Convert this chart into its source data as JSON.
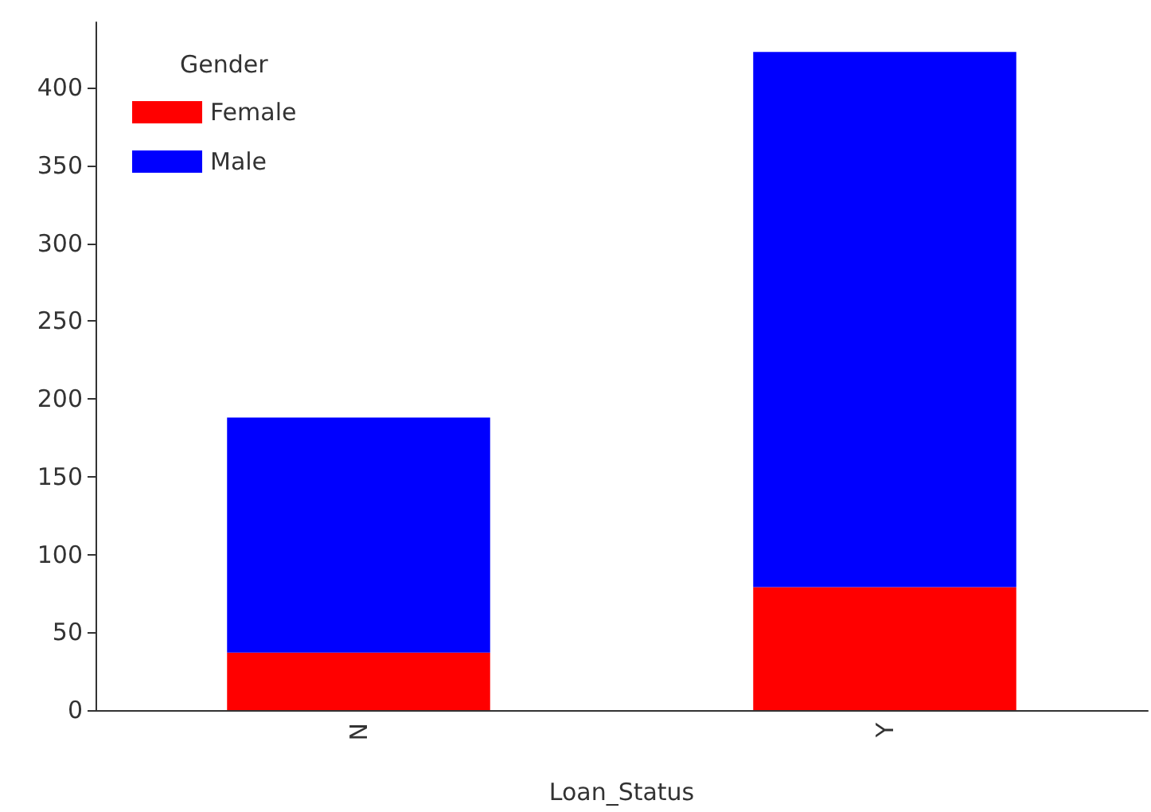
{
  "chart_data": {
    "type": "bar",
    "stacked": true,
    "xlabel": "Loan_Status",
    "legend_title": "Gender",
    "categories": [
      "N",
      "Y"
    ],
    "series": [
      {
        "name": "Female",
        "color": "#ff0000",
        "values": [
          37,
          79
        ]
      },
      {
        "name": "Male",
        "color": "#0000ff",
        "values": [
          151,
          344
        ]
      }
    ],
    "ylim": [
      0,
      442
    ],
    "yticks": [
      0,
      50,
      100,
      150,
      200,
      250,
      300,
      350,
      400
    ],
    "grid": false,
    "legend": "top left"
  }
}
